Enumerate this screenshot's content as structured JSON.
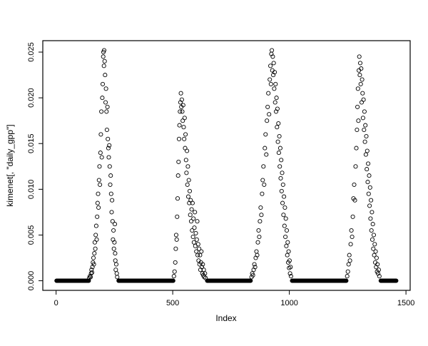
{
  "chart_data": {
    "type": "scatter",
    "title": "",
    "xlabel": "Index",
    "ylabel": "kimenet[, \"daily_gpp\"]",
    "marker": "open-circle",
    "point_color": "#000000",
    "background_color": "#ffffff",
    "grid": false,
    "legend": "none",
    "xlim": [
      -57,
      1518
    ],
    "ylim": [
      -0.00105,
      0.02625
    ],
    "x_ticks": [
      0,
      500,
      1000,
      1500
    ],
    "x_tick_labels": [
      "0",
      "500",
      "1000",
      "1500"
    ],
    "y_ticks": [
      0.0,
      0.005,
      0.01,
      0.015,
      0.02,
      0.025
    ],
    "y_tick_labels": [
      "0.000",
      "0.005",
      "0.010",
      "0.015",
      "0.020",
      "0.025"
    ],
    "zero_runs": [
      [
        2,
        140
      ],
      [
        268,
        502
      ],
      [
        648,
        835
      ],
      [
        1012,
        1244
      ],
      [
        1392,
        1458
      ]
    ],
    "zero_value": 0.0,
    "zero_step": 2,
    "points": [
      [
        142,
        0.0003
      ],
      [
        145,
        0.0005
      ],
      [
        148,
        0.0004
      ],
      [
        150,
        0.0008
      ],
      [
        152,
        0.0012
      ],
      [
        154,
        0.0009
      ],
      [
        156,
        0.0015
      ],
      [
        158,
        0.002
      ],
      [
        160,
        0.0025
      ],
      [
        162,
        0.0018
      ],
      [
        164,
        0.003
      ],
      [
        166,
        0.0042
      ],
      [
        168,
        0.0035
      ],
      [
        170,
        0.005
      ],
      [
        172,
        0.006
      ],
      [
        174,
        0.0045
      ],
      [
        176,
        0.007
      ],
      [
        178,
        0.0085
      ],
      [
        180,
        0.0095
      ],
      [
        182,
        0.008
      ],
      [
        184,
        0.011
      ],
      [
        186,
        0.0125
      ],
      [
        188,
        0.0105
      ],
      [
        190,
        0.014
      ],
      [
        192,
        0.016
      ],
      [
        194,
        0.0185
      ],
      [
        196,
        0.0135
      ],
      [
        198,
        0.02
      ],
      [
        200,
        0.0215
      ],
      [
        202,
        0.0245
      ],
      [
        203,
        0.025
      ],
      [
        205,
        0.0235
      ],
      [
        206,
        0.0252
      ],
      [
        208,
        0.024
      ],
      [
        210,
        0.0225
      ],
      [
        212,
        0.0195
      ],
      [
        214,
        0.021
      ],
      [
        216,
        0.0185
      ],
      [
        218,
        0.0165
      ],
      [
        220,
        0.019
      ],
      [
        222,
        0.0155
      ],
      [
        224,
        0.0145
      ],
      [
        226,
        0.0135
      ],
      [
        228,
        0.0148
      ],
      [
        230,
        0.0125
      ],
      [
        232,
        0.0105
      ],
      [
        234,
        0.0115
      ],
      [
        236,
        0.0095
      ],
      [
        238,
        0.0075
      ],
      [
        240,
        0.0088
      ],
      [
        242,
        0.0065
      ],
      [
        244,
        0.0045
      ],
      [
        246,
        0.0055
      ],
      [
        248,
        0.0035
      ],
      [
        250,
        0.0042
      ],
      [
        252,
        0.0062
      ],
      [
        253,
        0.003
      ],
      [
        254,
        0.0022
      ],
      [
        256,
        0.0012
      ],
      [
        258,
        0.0018
      ],
      [
        260,
        0.0008
      ],
      [
        262,
        0.0004
      ],
      [
        505,
        0.0005
      ],
      [
        508,
        0.001
      ],
      [
        511,
        0.002
      ],
      [
        513,
        0.0035
      ],
      [
        515,
        0.005
      ],
      [
        517,
        0.0045
      ],
      [
        519,
        0.007
      ],
      [
        521,
        0.009
      ],
      [
        523,
        0.0115
      ],
      [
        525,
        0.013
      ],
      [
        527,
        0.0155
      ],
      [
        529,
        0.017
      ],
      [
        531,
        0.0185
      ],
      [
        533,
        0.0195
      ],
      [
        535,
        0.0205
      ],
      [
        537,
        0.019
      ],
      [
        539,
        0.0198
      ],
      [
        541,
        0.0185
      ],
      [
        543,
        0.0175
      ],
      [
        545,
        0.0192
      ],
      [
        547,
        0.0168
      ],
      [
        549,
        0.0155
      ],
      [
        551,
        0.0178
      ],
      [
        553,
        0.0145
      ],
      [
        555,
        0.016
      ],
      [
        557,
        0.0132
      ],
      [
        559,
        0.0118
      ],
      [
        561,
        0.0142
      ],
      [
        563,
        0.0105
      ],
      [
        565,
        0.0125
      ],
      [
        567,
        0.0092
      ],
      [
        569,
        0.011
      ],
      [
        571,
        0.0085
      ],
      [
        573,
        0.0098
      ],
      [
        575,
        0.0072
      ],
      [
        577,
        0.0088
      ],
      [
        579,
        0.0065
      ],
      [
        581,
        0.0078
      ],
      [
        583,
        0.0055
      ],
      [
        585,
        0.0085
      ],
      [
        587,
        0.0048
      ],
      [
        589,
        0.0068
      ],
      [
        591,
        0.0042
      ],
      [
        593,
        0.0058
      ],
      [
        595,
        0.0075
      ],
      [
        597,
        0.0038
      ],
      [
        599,
        0.0052
      ],
      [
        601,
        0.0032
      ],
      [
        603,
        0.0045
      ],
      [
        605,
        0.0065
      ],
      [
        607,
        0.0028
      ],
      [
        609,
        0.004
      ],
      [
        611,
        0.0022
      ],
      [
        613,
        0.0035
      ],
      [
        615,
        0.0018
      ],
      [
        617,
        0.0028
      ],
      [
        619,
        0.0012
      ],
      [
        621,
        0.002
      ],
      [
        623,
        0.0032
      ],
      [
        625,
        0.0015
      ],
      [
        627,
        0.0008
      ],
      [
        629,
        0.0018
      ],
      [
        631,
        0.0006
      ],
      [
        633,
        0.0012
      ],
      [
        635,
        0.0004
      ],
      [
        638,
        0.0008
      ],
      [
        641,
        0.0003
      ],
      [
        838,
        0.0004
      ],
      [
        841,
        0.0008
      ],
      [
        844,
        0.0006
      ],
      [
        847,
        0.0012
      ],
      [
        850,
        0.0018
      ],
      [
        853,
        0.0015
      ],
      [
        856,
        0.0025
      ],
      [
        859,
        0.0032
      ],
      [
        862,
        0.0028
      ],
      [
        865,
        0.0042
      ],
      [
        868,
        0.0055
      ],
      [
        871,
        0.0048
      ],
      [
        874,
        0.0065
      ],
      [
        877,
        0.008
      ],
      [
        880,
        0.0072
      ],
      [
        883,
        0.0095
      ],
      [
        886,
        0.011
      ],
      [
        889,
        0.0125
      ],
      [
        892,
        0.0105
      ],
      [
        895,
        0.0145
      ],
      [
        898,
        0.016
      ],
      [
        901,
        0.0138
      ],
      [
        904,
        0.0175
      ],
      [
        907,
        0.019
      ],
      [
        910,
        0.0205
      ],
      [
        913,
        0.0182
      ],
      [
        916,
        0.022
      ],
      [
        919,
        0.0235
      ],
      [
        921,
        0.0215
      ],
      [
        923,
        0.0248
      ],
      [
        925,
        0.0252
      ],
      [
        927,
        0.023
      ],
      [
        929,
        0.0245
      ],
      [
        931,
        0.0225
      ],
      [
        933,
        0.0238
      ],
      [
        935,
        0.021
      ],
      [
        937,
        0.0228
      ],
      [
        939,
        0.0195
      ],
      [
        941,
        0.0215
      ],
      [
        943,
        0.0185
      ],
      [
        945,
        0.02
      ],
      [
        947,
        0.0168
      ],
      [
        949,
        0.0188
      ],
      [
        951,
        0.0152
      ],
      [
        953,
        0.0172
      ],
      [
        955,
        0.014
      ],
      [
        957,
        0.0158
      ],
      [
        959,
        0.0125
      ],
      [
        961,
        0.0145
      ],
      [
        963,
        0.0112
      ],
      [
        965,
        0.0132
      ],
      [
        967,
        0.0098
      ],
      [
        969,
        0.0118
      ],
      [
        971,
        0.0085
      ],
      [
        973,
        0.0105
      ],
      [
        975,
        0.0072
      ],
      [
        977,
        0.0092
      ],
      [
        979,
        0.006
      ],
      [
        981,
        0.008
      ],
      [
        983,
        0.0048
      ],
      [
        985,
        0.0068
      ],
      [
        987,
        0.0038
      ],
      [
        989,
        0.0055
      ],
      [
        991,
        0.0028
      ],
      [
        993,
        0.0042
      ],
      [
        995,
        0.002
      ],
      [
        997,
        0.0032
      ],
      [
        999,
        0.0014
      ],
      [
        1001,
        0.0022
      ],
      [
        1003,
        0.0008
      ],
      [
        1005,
        0.0015
      ],
      [
        1007,
        0.0005
      ],
      [
        1248,
        0.0005
      ],
      [
        1251,
        0.001
      ],
      [
        1254,
        0.0018
      ],
      [
        1257,
        0.0028
      ],
      [
        1260,
        0.0022
      ],
      [
        1263,
        0.004
      ],
      [
        1266,
        0.0055
      ],
      [
        1269,
        0.0048
      ],
      [
        1272,
        0.007
      ],
      [
        1275,
        0.009
      ],
      [
        1278,
        0.0105
      ],
      [
        1281,
        0.0088
      ],
      [
        1284,
        0.0125
      ],
      [
        1287,
        0.0145
      ],
      [
        1290,
        0.0165
      ],
      [
        1292,
        0.019
      ],
      [
        1294,
        0.021
      ],
      [
        1296,
        0.0175
      ],
      [
        1298,
        0.023
      ],
      [
        1300,
        0.0245
      ],
      [
        1302,
        0.0225
      ],
      [
        1304,
        0.0238
      ],
      [
        1306,
        0.0215
      ],
      [
        1308,
        0.0232
      ],
      [
        1310,
        0.0195
      ],
      [
        1312,
        0.022
      ],
      [
        1314,
        0.0205
      ],
      [
        1316,
        0.0178
      ],
      [
        1318,
        0.0198
      ],
      [
        1320,
        0.0165
      ],
      [
        1322,
        0.0185
      ],
      [
        1324,
        0.0152
      ],
      [
        1326,
        0.017
      ],
      [
        1328,
        0.0138
      ],
      [
        1330,
        0.0158
      ],
      [
        1332,
        0.0122
      ],
      [
        1334,
        0.0142
      ],
      [
        1336,
        0.0108
      ],
      [
        1338,
        0.0128
      ],
      [
        1340,
        0.0095
      ],
      [
        1342,
        0.0115
      ],
      [
        1344,
        0.0082
      ],
      [
        1346,
        0.0102
      ],
      [
        1348,
        0.0068
      ],
      [
        1350,
        0.0088
      ],
      [
        1352,
        0.0055
      ],
      [
        1354,
        0.0075
      ],
      [
        1356,
        0.0045
      ],
      [
        1358,
        0.0062
      ],
      [
        1360,
        0.0035
      ],
      [
        1362,
        0.005
      ],
      [
        1364,
        0.0028
      ],
      [
        1366,
        0.004
      ],
      [
        1368,
        0.002
      ],
      [
        1370,
        0.0032
      ],
      [
        1372,
        0.0015
      ],
      [
        1374,
        0.0025
      ],
      [
        1376,
        0.001
      ],
      [
        1378,
        0.0018
      ],
      [
        1380,
        0.0008
      ],
      [
        1383,
        0.0012
      ],
      [
        1386,
        0.0005
      ]
    ]
  }
}
